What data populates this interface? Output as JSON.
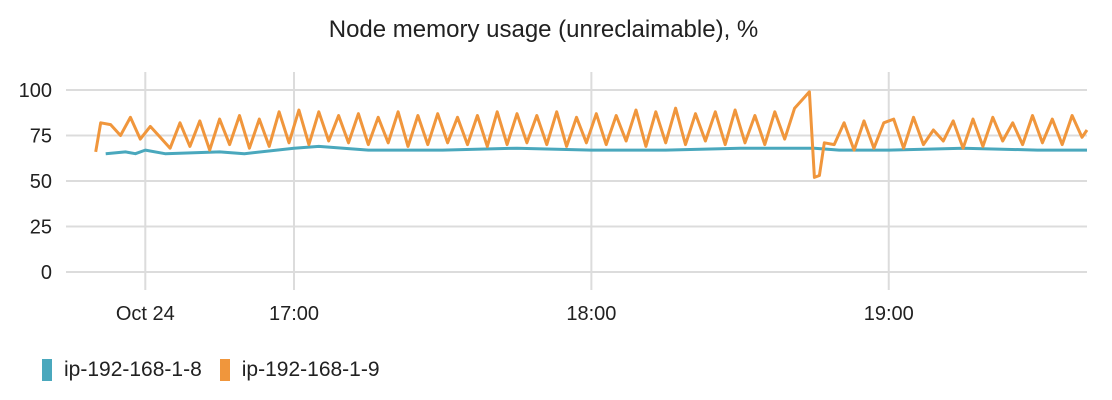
{
  "chart_data": {
    "type": "line",
    "title": "Node memory usage (unreclaimable), %",
    "xlabel": "",
    "ylabel": "",
    "ylim": [
      0,
      100
    ],
    "y_ticks": [
      0,
      25,
      50,
      75,
      100
    ],
    "x_range": [
      "16:14",
      "19:40"
    ],
    "x_ticks": [
      {
        "label": "Oct 24",
        "time": "16:30"
      },
      {
        "label": "17:00",
        "time": "17:00"
      },
      {
        "label": "18:00",
        "time": "18:00"
      },
      {
        "label": "19:00",
        "time": "19:00"
      }
    ],
    "grid": true,
    "legend_position": "bottom-left",
    "series": [
      {
        "name": "ip-192-168-1-8",
        "color": "#4aa8bd",
        "points": [
          [
            "16:22",
            65
          ],
          [
            "16:26",
            66
          ],
          [
            "16:28",
            65
          ],
          [
            "16:30",
            67
          ],
          [
            "16:34",
            65
          ],
          [
            "16:45",
            66
          ],
          [
            "16:50",
            65
          ],
          [
            "17:00",
            68
          ],
          [
            "17:05",
            69
          ],
          [
            "17:15",
            67
          ],
          [
            "17:30",
            67
          ],
          [
            "17:45",
            68
          ],
          [
            "18:00",
            67
          ],
          [
            "18:15",
            67
          ],
          [
            "18:30",
            68
          ],
          [
            "18:45",
            68
          ],
          [
            "18:50",
            67
          ],
          [
            "19:00",
            67
          ],
          [
            "19:15",
            68
          ],
          [
            "19:30",
            67
          ],
          [
            "19:40",
            67
          ]
        ]
      },
      {
        "name": "ip-192-168-1-9",
        "color": "#f0963c",
        "points": [
          [
            "16:20",
            66
          ],
          [
            "16:21",
            82
          ],
          [
            "16:23",
            81
          ],
          [
            "16:25",
            75
          ],
          [
            "16:27",
            85
          ],
          [
            "16:29",
            73
          ],
          [
            "16:31",
            80
          ],
          [
            "16:33",
            74
          ],
          [
            "16:35",
            68
          ],
          [
            "16:37",
            82
          ],
          [
            "16:39",
            69
          ],
          [
            "16:41",
            83
          ],
          [
            "16:43",
            67
          ],
          [
            "16:45",
            84
          ],
          [
            "16:47",
            70
          ],
          [
            "16:49",
            86
          ],
          [
            "16:51",
            68
          ],
          [
            "16:53",
            84
          ],
          [
            "16:55",
            69
          ],
          [
            "16:57",
            88
          ],
          [
            "16:59",
            71
          ],
          [
            "17:01",
            89
          ],
          [
            "17:03",
            70
          ],
          [
            "17:05",
            88
          ],
          [
            "17:07",
            72
          ],
          [
            "17:09",
            86
          ],
          [
            "17:11",
            71
          ],
          [
            "17:13",
            87
          ],
          [
            "17:15",
            70
          ],
          [
            "17:17",
            85
          ],
          [
            "17:19",
            71
          ],
          [
            "17:21",
            88
          ],
          [
            "17:23",
            69
          ],
          [
            "17:25",
            86
          ],
          [
            "17:27",
            70
          ],
          [
            "17:29",
            87
          ],
          [
            "17:31",
            71
          ],
          [
            "17:33",
            85
          ],
          [
            "17:35",
            70
          ],
          [
            "17:37",
            86
          ],
          [
            "17:39",
            69
          ],
          [
            "17:41",
            88
          ],
          [
            "17:43",
            70
          ],
          [
            "17:45",
            87
          ],
          [
            "17:47",
            71
          ],
          [
            "17:49",
            86
          ],
          [
            "17:51",
            70
          ],
          [
            "17:53",
            88
          ],
          [
            "17:55",
            69
          ],
          [
            "17:57",
            85
          ],
          [
            "17:59",
            71
          ],
          [
            "18:01",
            87
          ],
          [
            "18:03",
            70
          ],
          [
            "18:05",
            86
          ],
          [
            "18:07",
            72
          ],
          [
            "18:09",
            89
          ],
          [
            "18:11",
            69
          ],
          [
            "18:13",
            88
          ],
          [
            "18:15",
            71
          ],
          [
            "18:17",
            90
          ],
          [
            "18:19",
            70
          ],
          [
            "18:21",
            87
          ],
          [
            "18:23",
            72
          ],
          [
            "18:25",
            88
          ],
          [
            "18:27",
            70
          ],
          [
            "18:29",
            89
          ],
          [
            "18:31",
            71
          ],
          [
            "18:33",
            86
          ],
          [
            "18:35",
            70
          ],
          [
            "18:37",
            88
          ],
          [
            "18:39",
            73
          ],
          [
            "18:41",
            90
          ],
          [
            "18:43",
            96
          ],
          [
            "18:44",
            99
          ],
          [
            "18:45",
            52
          ],
          [
            "18:46",
            53
          ],
          [
            "18:47",
            71
          ],
          [
            "18:49",
            70
          ],
          [
            "18:51",
            82
          ],
          [
            "18:53",
            67
          ],
          [
            "18:55",
            83
          ],
          [
            "18:57",
            68
          ],
          [
            "18:59",
            82
          ],
          [
            "19:01",
            84
          ],
          [
            "19:03",
            68
          ],
          [
            "19:05",
            85
          ],
          [
            "19:07",
            70
          ],
          [
            "19:09",
            78
          ],
          [
            "19:11",
            72
          ],
          [
            "19:13",
            83
          ],
          [
            "19:15",
            68
          ],
          [
            "19:17",
            84
          ],
          [
            "19:19",
            69
          ],
          [
            "19:21",
            85
          ],
          [
            "19:23",
            72
          ],
          [
            "19:25",
            82
          ],
          [
            "19:27",
            70
          ],
          [
            "19:29",
            86
          ],
          [
            "19:31",
            71
          ],
          [
            "19:33",
            84
          ],
          [
            "19:35",
            70
          ],
          [
            "19:37",
            86
          ],
          [
            "19:39",
            74
          ],
          [
            "19:40",
            78
          ]
        ]
      }
    ]
  }
}
